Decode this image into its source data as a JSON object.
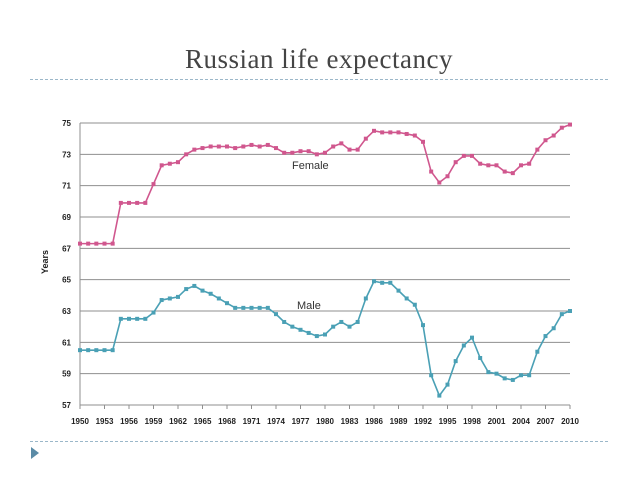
{
  "slide": {
    "title": "Russian life expectancy"
  },
  "chart_data": {
    "type": "line",
    "ylabel": "Years",
    "xlabel": "",
    "ylim": [
      57,
      75
    ],
    "yticks": [
      57,
      59,
      61,
      63,
      65,
      67,
      69,
      71,
      73,
      75
    ],
    "xlim": [
      1950,
      2010
    ],
    "xticks": [
      1950,
      1953,
      1956,
      1959,
      1962,
      1965,
      1968,
      1971,
      1974,
      1977,
      1980,
      1983,
      1986,
      1989,
      1992,
      1995,
      1998,
      2001,
      2004,
      2007,
      2010
    ],
    "grid": true,
    "x": [
      1950,
      1951,
      1952,
      1953,
      1954,
      1955,
      1956,
      1957,
      1958,
      1959,
      1960,
      1961,
      1962,
      1963,
      1964,
      1965,
      1966,
      1967,
      1968,
      1969,
      1970,
      1971,
      1972,
      1973,
      1974,
      1975,
      1976,
      1977,
      1978,
      1979,
      1980,
      1981,
      1982,
      1983,
      1984,
      1985,
      1986,
      1987,
      1988,
      1989,
      1990,
      1991,
      1992,
      1993,
      1994,
      1995,
      1996,
      1997,
      1998,
      1999,
      2000,
      2001,
      2002,
      2003,
      2004,
      2005,
      2006,
      2007,
      2008,
      2009,
      2010
    ],
    "series": [
      {
        "name": "Female",
        "color": "#d0578e",
        "values": [
          67.3,
          67.3,
          67.3,
          67.3,
          67.3,
          69.9,
          69.9,
          69.9,
          69.9,
          71.1,
          72.3,
          72.4,
          72.5,
          73.0,
          73.3,
          73.4,
          73.5,
          73.5,
          73.5,
          73.4,
          73.5,
          73.6,
          73.5,
          73.6,
          73.4,
          73.1,
          73.1,
          73.2,
          73.2,
          73.0,
          73.1,
          73.5,
          73.7,
          73.3,
          73.3,
          74.0,
          74.5,
          74.4,
          74.4,
          74.4,
          74.3,
          74.2,
          73.8,
          71.9,
          71.2,
          71.6,
          72.5,
          72.9,
          72.9,
          72.4,
          72.3,
          72.3,
          71.9,
          71.8,
          72.3,
          72.4,
          73.3,
          73.9,
          74.2,
          74.7,
          74.9
        ]
      },
      {
        "name": "Male",
        "color": "#4aa0b5",
        "values": [
          60.5,
          60.5,
          60.5,
          60.5,
          60.5,
          62.5,
          62.5,
          62.5,
          62.5,
          62.9,
          63.7,
          63.8,
          63.9,
          64.4,
          64.6,
          64.3,
          64.1,
          63.8,
          63.5,
          63.2,
          63.2,
          63.2,
          63.2,
          63.2,
          62.8,
          62.3,
          62.0,
          61.8,
          61.6,
          61.4,
          61.5,
          62.0,
          62.3,
          62.0,
          62.3,
          63.8,
          64.9,
          64.8,
          64.8,
          64.3,
          63.8,
          63.4,
          62.1,
          58.9,
          57.6,
          58.3,
          59.8,
          60.8,
          61.3,
          60.0,
          59.1,
          59.0,
          58.7,
          58.6,
          58.9,
          58.9,
          60.4,
          61.4,
          61.9,
          62.8,
          63.0
        ]
      }
    ]
  }
}
